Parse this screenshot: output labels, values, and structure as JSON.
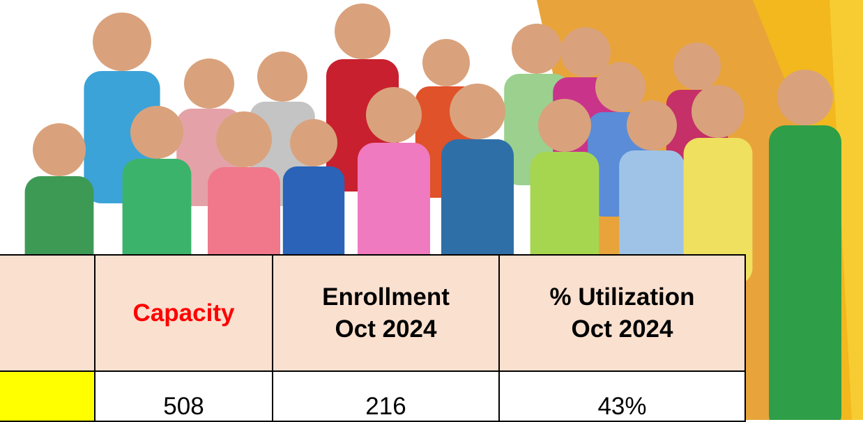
{
  "table": {
    "header": [
      [
        "Capacity"
      ],
      [
        "Enrollment",
        "Oct 2024"
      ],
      [
        "% Utilization",
        "Oct 2024"
      ]
    ],
    "rows": [
      [
        "508",
        "216",
        "43%"
      ]
    ]
  }
}
